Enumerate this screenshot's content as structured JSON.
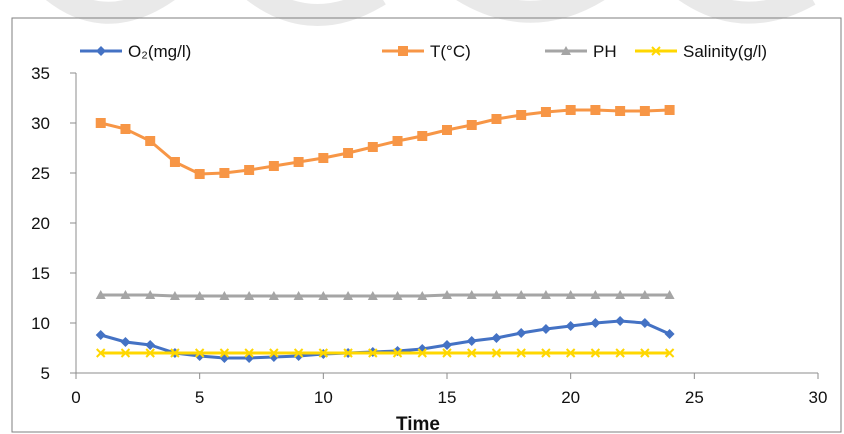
{
  "chart_data": {
    "type": "line",
    "title": "",
    "xlabel": "Time",
    "ylabel": "",
    "xlim": [
      0,
      30
    ],
    "ylim": [
      5,
      35
    ],
    "x_ticks": [
      0,
      5,
      10,
      15,
      20,
      25,
      30
    ],
    "y_ticks": [
      5,
      10,
      15,
      20,
      25,
      30,
      35
    ],
    "grid": false,
    "legend_position": "top",
    "x": [
      1,
      2,
      3,
      4,
      5,
      6,
      7,
      8,
      9,
      10,
      11,
      12,
      13,
      14,
      15,
      16,
      17,
      18,
      19,
      20,
      21,
      22,
      23,
      24
    ],
    "series": [
      {
        "name": "O₂(mg/l)",
        "color": "#4472C4",
        "marker": "diamond",
        "values": [
          8.8,
          8.1,
          7.8,
          7.0,
          6.7,
          6.5,
          6.5,
          6.6,
          6.7,
          6.9,
          7.0,
          7.1,
          7.2,
          7.4,
          7.8,
          8.2,
          8.5,
          9.0,
          9.4,
          9.7,
          10.0,
          10.2,
          10.0,
          8.9
        ]
      },
      {
        "name": "T(°C)",
        "color": "#F79646",
        "marker": "square",
        "values": [
          30.0,
          29.4,
          28.2,
          26.1,
          24.9,
          25.0,
          25.3,
          25.7,
          26.1,
          26.5,
          27.0,
          27.6,
          28.2,
          28.7,
          29.3,
          29.8,
          30.4,
          30.8,
          31.1,
          31.3,
          31.3,
          31.2,
          31.2,
          31.3
        ]
      },
      {
        "name": "PH",
        "color": "#A5A5A5",
        "marker": "triangle",
        "values": [
          12.8,
          12.8,
          12.8,
          12.7,
          12.7,
          12.7,
          12.7,
          12.7,
          12.7,
          12.7,
          12.7,
          12.7,
          12.7,
          12.7,
          12.8,
          12.8,
          12.8,
          12.8,
          12.8,
          12.8,
          12.8,
          12.8,
          12.8,
          12.8
        ]
      },
      {
        "name": "Salinity(g/l)",
        "color": "#FFD700",
        "marker": "x",
        "values": [
          7.0,
          7.0,
          7.0,
          7.0,
          7.0,
          7.0,
          7.0,
          7.0,
          7.0,
          7.0,
          7.0,
          7.0,
          7.0,
          7.0,
          7.0,
          7.0,
          7.0,
          7.0,
          7.0,
          7.0,
          7.0,
          7.0,
          7.0,
          7.0
        ]
      }
    ]
  }
}
